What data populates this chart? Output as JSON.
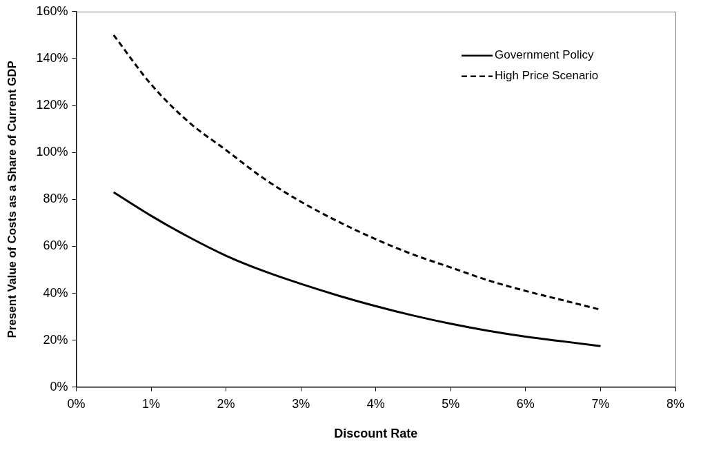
{
  "chart_data": {
    "type": "line",
    "xlabel": "Discount Rate",
    "ylabel": "Present Value of Costs as a Share of Current GDP",
    "x": [
      0.5,
      1,
      1.5,
      2,
      2.5,
      3,
      3.5,
      4,
      4.5,
      5,
      5.5,
      6,
      6.5,
      7
    ],
    "series": [
      {
        "name": "Government Policy",
        "color": "#000000",
        "line_style": "solid",
        "values": [
          83,
          73,
          64,
          56,
          49.5,
          44,
          39,
          34.5,
          30.5,
          27,
          24,
          21.5,
          19.5,
          17.5
        ]
      },
      {
        "name": "High Price Scenario",
        "color": "#000000",
        "line_style": "dashed",
        "values": [
          150,
          129,
          113,
          101,
          89,
          79,
          70.5,
          63,
          56.5,
          51,
          45.5,
          41,
          37,
          33
        ]
      }
    ],
    "xlim": [
      0,
      8
    ],
    "xticks": [
      {
        "value": 0,
        "label": "0%"
      },
      {
        "value": 1,
        "label": "1%"
      },
      {
        "value": 2,
        "label": "2%"
      },
      {
        "value": 3,
        "label": "3%"
      },
      {
        "value": 4,
        "label": "4%"
      },
      {
        "value": 5,
        "label": "5%"
      },
      {
        "value": 6,
        "label": "6%"
      },
      {
        "value": 7,
        "label": "7%"
      },
      {
        "value": 8,
        "label": "8%"
      }
    ],
    "ylim": [
      0,
      160
    ],
    "yticks": [
      {
        "value": 0,
        "label": "0%"
      },
      {
        "value": 20,
        "label": "20%"
      },
      {
        "value": 40,
        "label": "40%"
      },
      {
        "value": 60,
        "label": "60%"
      },
      {
        "value": 80,
        "label": "80%"
      },
      {
        "value": 100,
        "label": "100%"
      },
      {
        "value": 120,
        "label": "120%"
      },
      {
        "value": 140,
        "label": "140%"
      },
      {
        "value": 160,
        "label": "160%"
      }
    ],
    "grid": false,
    "legend": "top right",
    "marker": "none"
  }
}
